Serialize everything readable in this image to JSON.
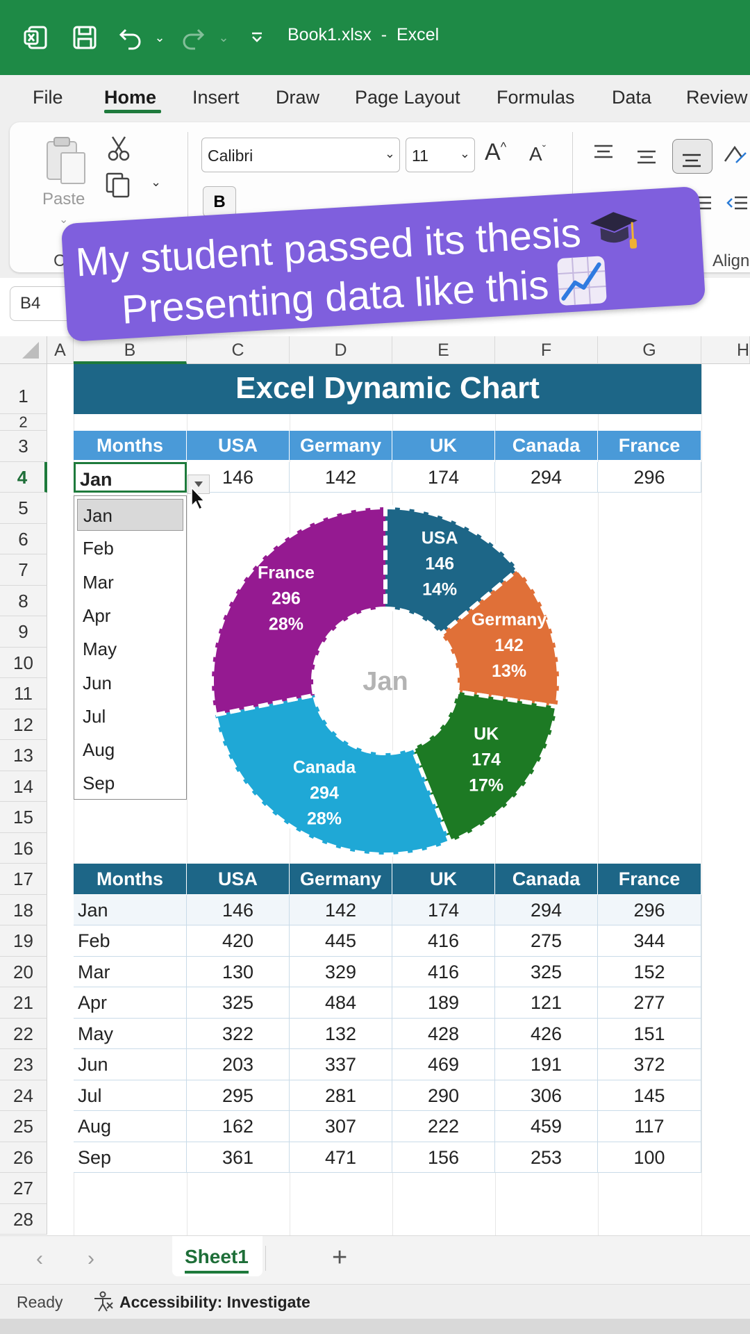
{
  "app": {
    "file_title": "Book1.xlsx  -  Excel",
    "colors": {
      "title_bar": "#1e8a46",
      "accent_green": "#1e7a3c",
      "banner": "#7f5fdd"
    }
  },
  "ribbon": {
    "tabs": [
      "File",
      "Home",
      "Insert",
      "Draw",
      "Page Layout",
      "Formulas",
      "Data",
      "Review"
    ],
    "active_tab": "Home",
    "paste_label": "Paste",
    "font_name": "Calibri",
    "font_size": "11",
    "clipboard_group_label_fragment": "C",
    "alignment_group_label_fragment": "Align",
    "bold_label": "B"
  },
  "name_box": {
    "value": "B4"
  },
  "banner": {
    "line1": "My student passed its thesis",
    "line2": "Presenting data like this",
    "emoji1": "graduation-cap",
    "emoji2": "chart-increasing"
  },
  "grid": {
    "columns": [
      "A",
      "B",
      "C",
      "D",
      "E",
      "F",
      "G",
      "H"
    ],
    "rows": [
      "1",
      "2",
      "3",
      "4",
      "5",
      "6",
      "7",
      "8",
      "9",
      "10",
      "11",
      "12",
      "13",
      "14",
      "15",
      "16",
      "17",
      "18",
      "19",
      "20",
      "21",
      "22",
      "23",
      "24",
      "25",
      "26",
      "27",
      "28"
    ]
  },
  "title": {
    "text": "Excel Dynamic Chart"
  },
  "selector": {
    "headers": [
      "Months",
      "USA",
      "Germany",
      "UK",
      "Canada",
      "France"
    ],
    "selected_month": "Jan",
    "values": [
      "146",
      "142",
      "174",
      "294",
      "296"
    ]
  },
  "dropdown": {
    "options": [
      "Jan",
      "Feb",
      "Mar",
      "Apr",
      "May",
      "Jun",
      "Jul",
      "Aug",
      "Sep"
    ],
    "selected_index": 0
  },
  "chart_data": {
    "type": "pie",
    "variant": "doughnut",
    "center_label": "Jan",
    "slices": [
      {
        "label": "USA",
        "value": 146,
        "percent": "14%",
        "color": "#1d6687"
      },
      {
        "label": "Germany",
        "value": 142,
        "percent": "13%",
        "color": "#e07038"
      },
      {
        "label": "UK",
        "value": 174,
        "percent": "17%",
        "color": "#1d7a24"
      },
      {
        "label": "Canada",
        "value": 294,
        "percent": "28%",
        "color": "#1fa8d6"
      },
      {
        "label": "France",
        "value": 296,
        "percent": "28%",
        "color": "#951a91"
      }
    ]
  },
  "data_table": {
    "headers": [
      "Months",
      "USA",
      "Germany",
      "UK",
      "Canada",
      "France"
    ],
    "rows": [
      [
        "Jan",
        "146",
        "142",
        "174",
        "294",
        "296"
      ],
      [
        "Feb",
        "420",
        "445",
        "416",
        "275",
        "344"
      ],
      [
        "Mar",
        "130",
        "329",
        "416",
        "325",
        "152"
      ],
      [
        "Apr",
        "325",
        "484",
        "189",
        "121",
        "277"
      ],
      [
        "May",
        "322",
        "132",
        "428",
        "426",
        "151"
      ],
      [
        "Jun",
        "203",
        "337",
        "469",
        "191",
        "372"
      ],
      [
        "Jul",
        "295",
        "281",
        "290",
        "306",
        "145"
      ],
      [
        "Aug",
        "162",
        "307",
        "222",
        "459",
        "117"
      ],
      [
        "Sep",
        "361",
        "471",
        "156",
        "253",
        "100"
      ]
    ]
  },
  "sheets": {
    "tabs": [
      "Sheet1"
    ],
    "active": "Sheet1",
    "add_label": "+"
  },
  "status": {
    "ready": "Ready",
    "accessibility": "Accessibility: Investigate"
  }
}
